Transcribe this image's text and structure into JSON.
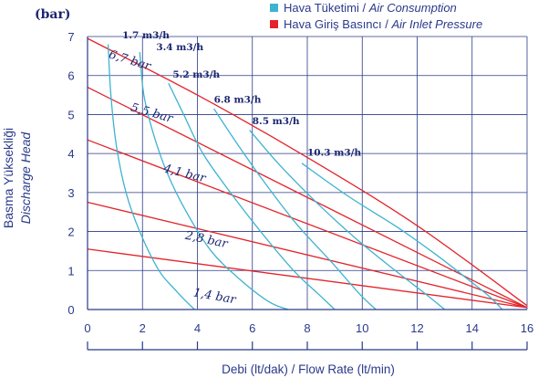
{
  "chart_data": {
    "type": "line",
    "y_unit": "(bar)",
    "ylabel_line1": "Basma Yüksekliği",
    "ylabel_line2": "Discharge Head",
    "xlabel": "Debi (lt/dak) / Flow Rate (lt/min)",
    "xlim": [
      0,
      16
    ],
    "ylim": [
      0,
      7
    ],
    "x_ticks": [
      "0",
      "2",
      "4",
      "6",
      "8",
      "10",
      "12",
      "14",
      "16"
    ],
    "y_ticks": [
      "0",
      "1",
      "2",
      "3",
      "4",
      "5",
      "6",
      "7"
    ],
    "grid": true,
    "legend_position": "top-right",
    "legend": [
      {
        "label_tr": "Hava Tüketimi",
        "label_en": "Air Consumption",
        "color": "#3db3d0"
      },
      {
        "label_tr": "Hava Giriş Basıncı",
        "label_en": "Air Inlet Pressure",
        "color": "#e3242b"
      }
    ],
    "air_inlet_pressure_series": [
      {
        "label": "1,4 bar",
        "x": [
          0,
          16
        ],
        "y": [
          1.55,
          0.05
        ]
      },
      {
        "label": "2,8 bar",
        "x": [
          0,
          16
        ],
        "y": [
          2.75,
          0.05
        ]
      },
      {
        "label": "4,1 bar",
        "x": [
          0,
          16
        ],
        "y": [
          4.35,
          0.05
        ]
      },
      {
        "label": "5,5 bar",
        "x": [
          0,
          16
        ],
        "y": [
          5.7,
          0.05
        ]
      },
      {
        "label": "6,7 bar",
        "x": [
          0,
          4,
          8,
          12,
          16
        ],
        "y": [
          6.95,
          5.5,
          3.9,
          2.15,
          0.1
        ]
      }
    ],
    "air_consumption_series": [
      {
        "label": "1.7 m3/h",
        "x": [
          0.75,
          0.85,
          1.05,
          1.4,
          1.9,
          2.6,
          3.2,
          3.6,
          3.9
        ],
        "y": [
          6.8,
          5.5,
          4.2,
          3.0,
          2.0,
          1.0,
          0.5,
          0.2,
          0
        ]
      },
      {
        "label": "3.4 m3/h",
        "x": [
          1.9,
          2.05,
          2.4,
          2.9,
          3.6,
          4.5,
          5.5,
          6.6,
          7.3
        ],
        "y": [
          6.6,
          5.5,
          4.5,
          3.5,
          2.5,
          1.5,
          0.8,
          0.2,
          0
        ]
      },
      {
        "label": "5.2 m3/h",
        "x": [
          2.95,
          3.5,
          4.2,
          5.2,
          6.3,
          7.5,
          8.4,
          9.0
        ],
        "y": [
          5.8,
          5.0,
          4.0,
          3.0,
          2.0,
          1.0,
          0.4,
          0
        ]
      },
      {
        "label": "6.8 m3/h",
        "x": [
          4.6,
          5.4,
          6.4,
          7.6,
          8.9,
          9.9,
          10.5
        ],
        "y": [
          5.15,
          4.3,
          3.3,
          2.2,
          1.2,
          0.4,
          0
        ]
      },
      {
        "label": "8.5 m3/h",
        "x": [
          5.9,
          7.0,
          8.4,
          9.8,
          11.2,
          12.3,
          13.0
        ],
        "y": [
          4.6,
          3.7,
          2.7,
          1.8,
          1.0,
          0.4,
          0
        ]
      },
      {
        "label": "10.3 m3/h",
        "x": [
          7.8,
          9.5,
          11.3,
          12.7,
          13.8,
          14.6,
          15.1
        ],
        "y": [
          3.75,
          2.9,
          2.1,
          1.4,
          0.8,
          0.35,
          0
        ]
      }
    ]
  }
}
